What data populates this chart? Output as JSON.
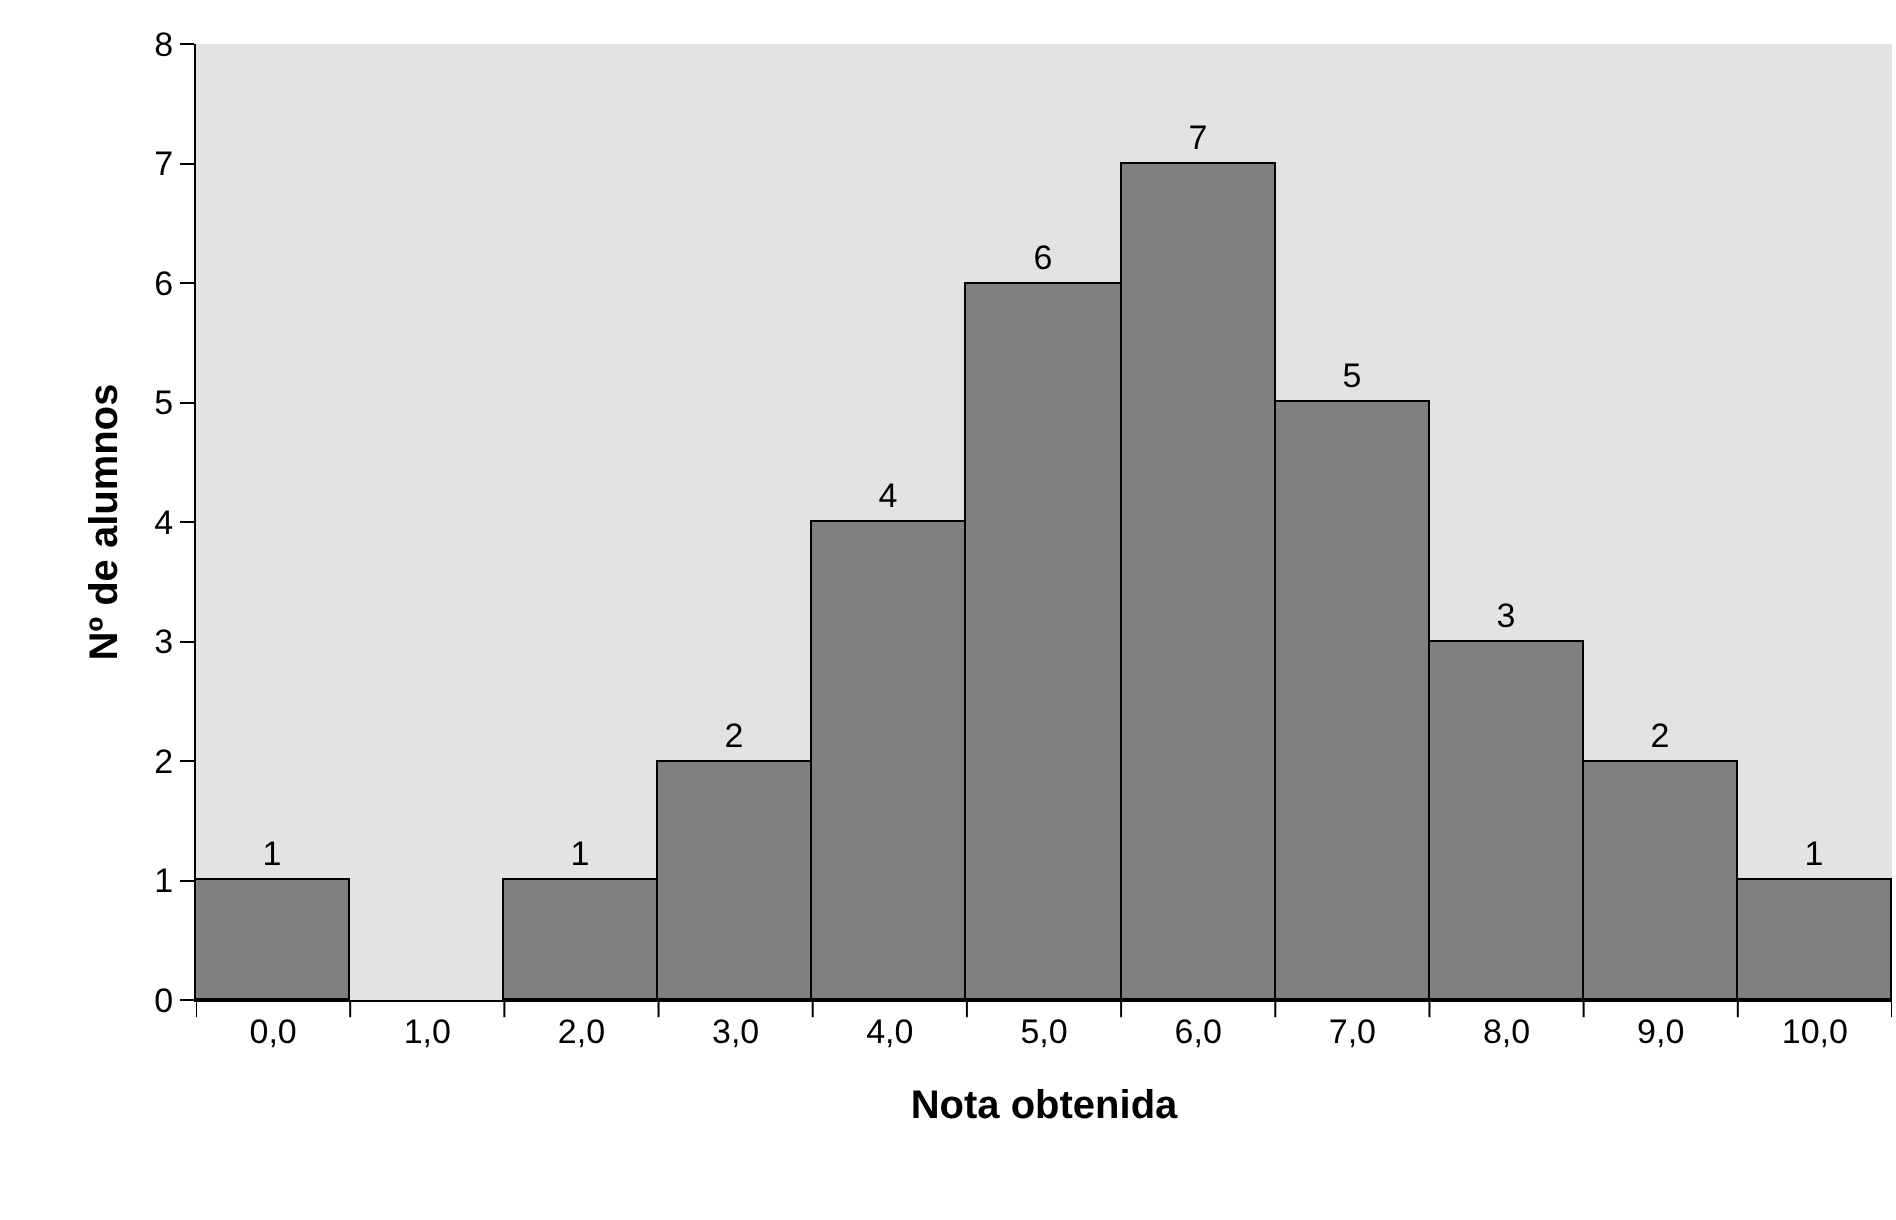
{
  "chart_data": {
    "type": "bar",
    "xlabel": "Nota obtenida",
    "ylabel": "Nº de alumnos",
    "categories": [
      "0,0",
      "1,0",
      "2,0",
      "3,0",
      "4,0",
      "5,0",
      "6,0",
      "7,0",
      "8,0",
      "9,0",
      "10,0"
    ],
    "values": [
      1,
      0,
      1,
      2,
      4,
      6,
      7,
      5,
      3,
      2,
      1
    ],
    "value_labels": [
      "1",
      null,
      "1",
      "2",
      "4",
      "6",
      "7",
      "5",
      "3",
      "2",
      "1"
    ],
    "color": "#808080",
    "ylim": [
      0,
      8
    ],
    "yticks": [
      0,
      1,
      2,
      3,
      4,
      5,
      6,
      7,
      8
    ],
    "grid": false,
    "legend": false
  }
}
